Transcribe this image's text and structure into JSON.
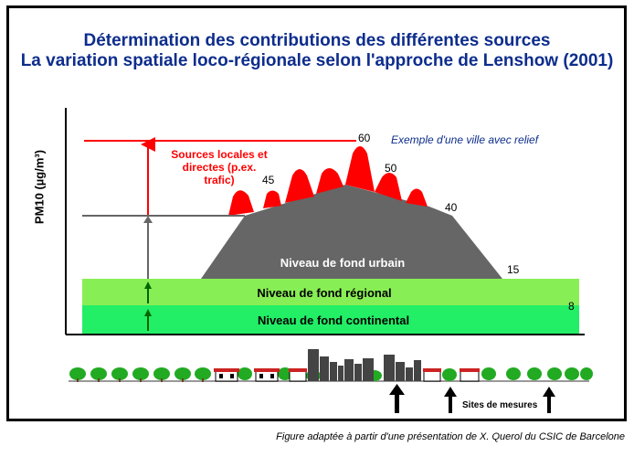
{
  "title": "Détermination des contributions des différentes sources",
  "subtitle": "La variation spatiale loco-régionale selon l'approche de Lenshow (2001)",
  "y_axis_label": "PM10 (µg/m³)",
  "example_label": "Exemple d'une ville avec relief",
  "sources_label": [
    "Sources locales et",
    "directes (p.ex.",
    "trafic)"
  ],
  "layers": {
    "urban": "Niveau de fond urbain",
    "regional": "Niveau de fond régional",
    "continental": "Niveau de fond continental"
  },
  "values": {
    "v60": "60",
    "v50": "50",
    "v45": "45",
    "v40": "40",
    "v15": "15",
    "v8": "8"
  },
  "sites_label": "Sites de mesures",
  "caption": "Figure adaptée à partir d'une présentation de X. Querol du CSIC de Barcelone",
  "colors": {
    "title": "#0d2d8c",
    "red": "#ff0000",
    "urban_gray": "#666666",
    "regional_green": "#88ee55",
    "continental_green": "#22ee66",
    "tree_green": "#22aa22"
  }
}
